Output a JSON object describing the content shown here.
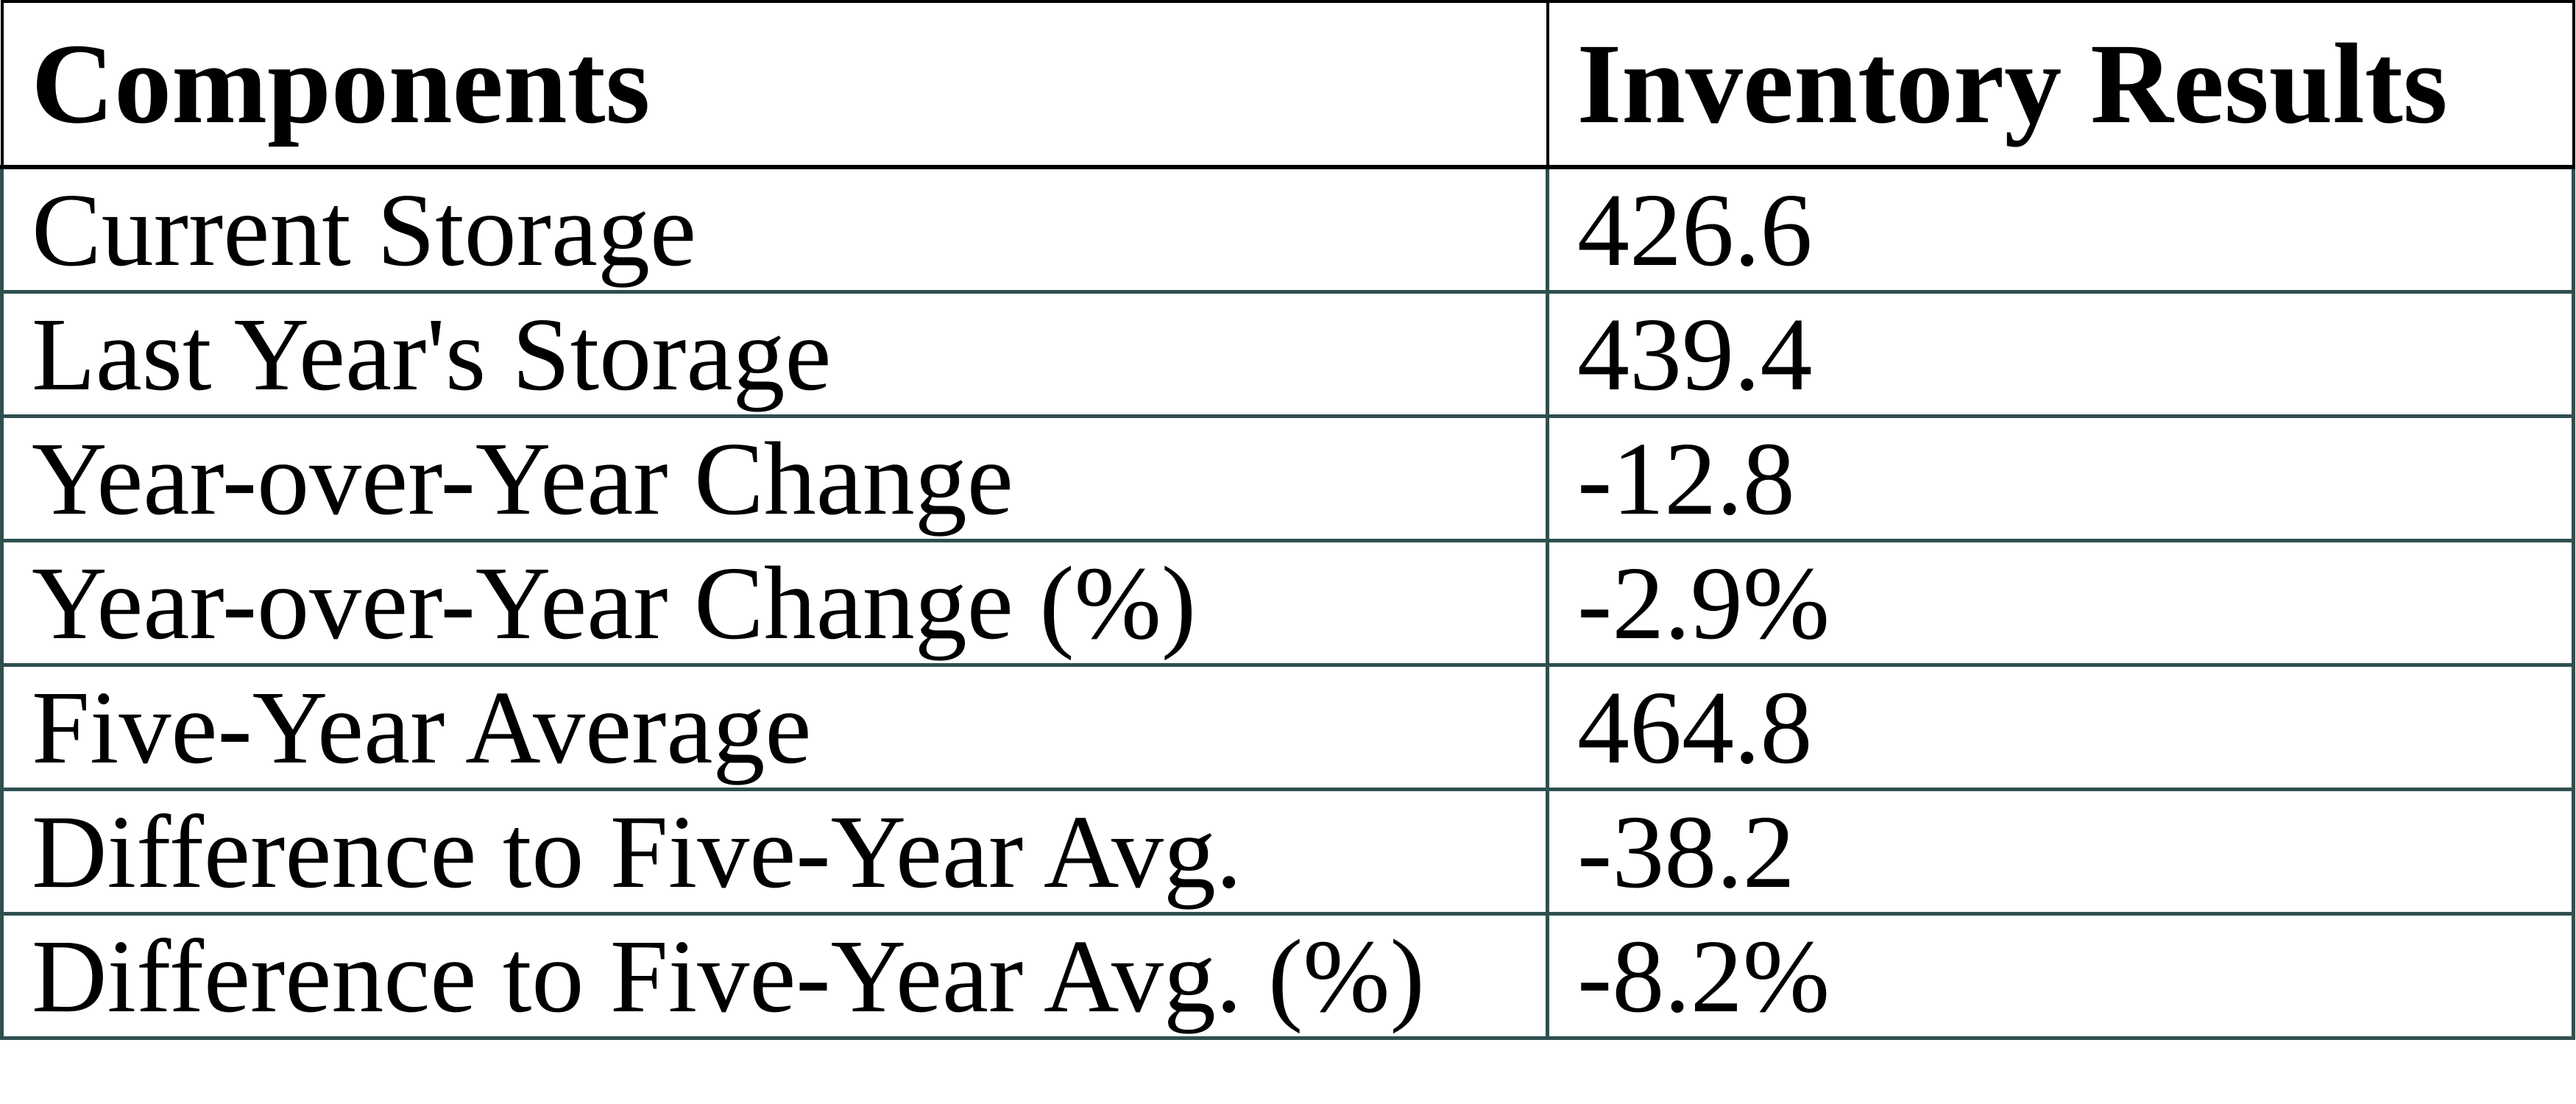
{
  "table": {
    "headers": {
      "component": "Components",
      "result": "Inventory Results"
    },
    "rows": [
      {
        "component": "Current Storage",
        "value": "426.6"
      },
      {
        "component": "Last Year's Storage",
        "value": "439.4"
      },
      {
        "component": "Year-over-Year Change",
        "value": "-12.8"
      },
      {
        "component": "Year-over-Year Change (%)",
        "value": "-2.9%"
      },
      {
        "component": "Five-Year Average",
        "value": "464.8"
      },
      {
        "component": "Difference to Five-Year Avg.",
        "value": "-38.2"
      },
      {
        "component": "Difference to Five-Year Avg. (%)",
        "value": "-8.2%"
      }
    ],
    "colors": {
      "header_border": "#000000",
      "row_border": "#2F4F4F",
      "text": "#000000",
      "background": "#FFFFFF"
    }
  },
  "chart_data": {
    "type": "table",
    "title": "",
    "columns": [
      "Components",
      "Inventory Results"
    ],
    "rows": [
      [
        "Current Storage",
        "426.6"
      ],
      [
        "Last Year's Storage",
        "439.4"
      ],
      [
        "Year-over-Year Change",
        "-12.8"
      ],
      [
        "Year-over-Year Change (%)",
        "-2.9%"
      ],
      [
        "Five-Year Average",
        "464.8"
      ],
      [
        "Difference to Five-Year Avg.",
        "-38.2"
      ],
      [
        "Difference to Five-Year Avg. (%)",
        "-8.2%"
      ]
    ]
  }
}
